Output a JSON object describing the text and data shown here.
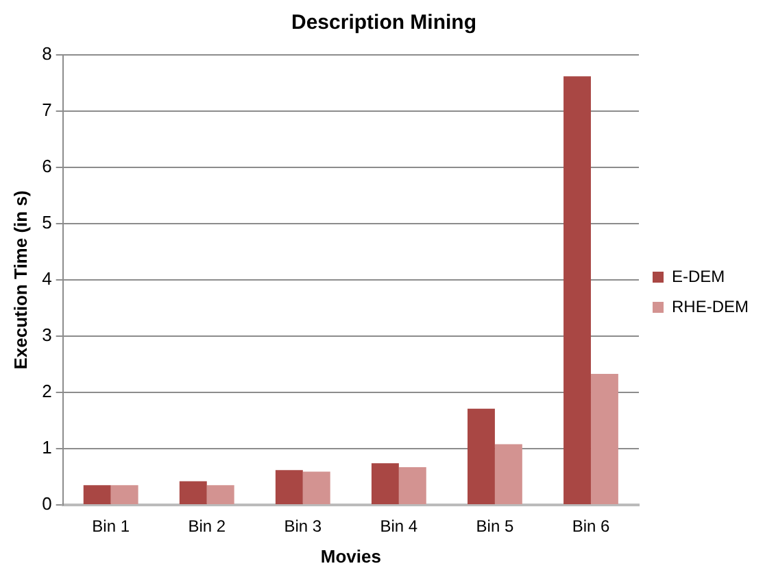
{
  "chart_data": {
    "type": "bar",
    "title": "Description Mining",
    "xlabel": "Movies",
    "ylabel": "Execution Time (in s)",
    "categories": [
      "Bin 1",
      "Bin 2",
      "Bin 3",
      "Bin 4",
      "Bin 5",
      "Bin 6"
    ],
    "series": [
      {
        "name": "E-DEM",
        "color": "#a94744",
        "values": [
          0.35,
          0.42,
          0.62,
          0.74,
          1.71,
          7.62
        ]
      },
      {
        "name": "RHE-DEM",
        "color": "#d39391",
        "values": [
          0.35,
          0.35,
          0.59,
          0.67,
          1.08,
          2.33
        ]
      }
    ],
    "ylim": [
      0,
      8
    ],
    "yticks": [
      0,
      1,
      2,
      3,
      4,
      5,
      6,
      7,
      8
    ],
    "grid": "y",
    "legend": "right"
  }
}
